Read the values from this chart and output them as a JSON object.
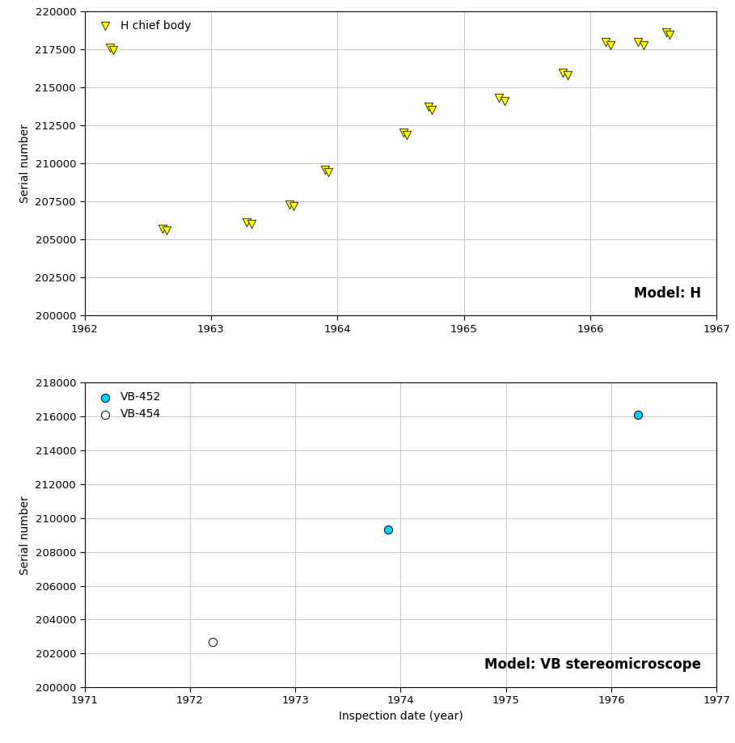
{
  "top_chart": {
    "title": "Model: H",
    "xlim": [
      1962,
      1967
    ],
    "ylim": [
      200000,
      220000
    ],
    "xticks": [
      1962,
      1963,
      1964,
      1965,
      1966,
      1967
    ],
    "yticks": [
      200000,
      202500,
      205000,
      207500,
      210000,
      212500,
      215000,
      217500,
      220000
    ],
    "series": [
      {
        "label": "H chief body",
        "marker": "v",
        "color": "#ffff00",
        "edgecolor": "#333300",
        "x": [
          1962.2,
          1962.23,
          1962.62,
          1962.65,
          1963.28,
          1963.32,
          1963.62,
          1963.65,
          1963.9,
          1963.93,
          1964.52,
          1964.55,
          1964.72,
          1964.75,
          1965.28,
          1965.32,
          1965.78,
          1965.82,
          1966.12,
          1966.16,
          1966.38,
          1966.42,
          1966.6,
          1966.63
        ],
        "y": [
          217600,
          217450,
          205700,
          205580,
          206150,
          206050,
          207320,
          207200,
          209600,
          209430,
          212050,
          211850,
          213700,
          213520,
          214300,
          214120,
          215950,
          215780,
          217950,
          217780,
          217950,
          217780,
          218600,
          218430
        ]
      }
    ]
  },
  "bottom_chart": {
    "title": "Model: VB stereomicroscope",
    "xlim": [
      1971,
      1977
    ],
    "ylim": [
      200000,
      218000
    ],
    "xticks": [
      1971,
      1972,
      1973,
      1974,
      1975,
      1976,
      1977
    ],
    "yticks": [
      200000,
      202000,
      204000,
      206000,
      208000,
      210000,
      212000,
      214000,
      216000,
      218000
    ],
    "series": [
      {
        "label": "VB-452",
        "marker": "o",
        "color": "#00ccff",
        "edgecolor": "#000000",
        "x": [
          1973.88,
          1976.25
        ],
        "y": [
          209300,
          216100
        ]
      },
      {
        "label": "VB-454",
        "marker": "o",
        "color": "#ffffff",
        "edgecolor": "#000000",
        "x": [
          1972.22
        ],
        "y": [
          202700
        ]
      }
    ]
  },
  "xlabel": "Inspection date (year)",
  "ylabel": "Serial number",
  "background_color": "#ffffff",
  "grid_color": "#c8c8c8",
  "title_fontsize": 12,
  "label_fontsize": 10,
  "tick_fontsize": 9.5,
  "marker_size": 55
}
